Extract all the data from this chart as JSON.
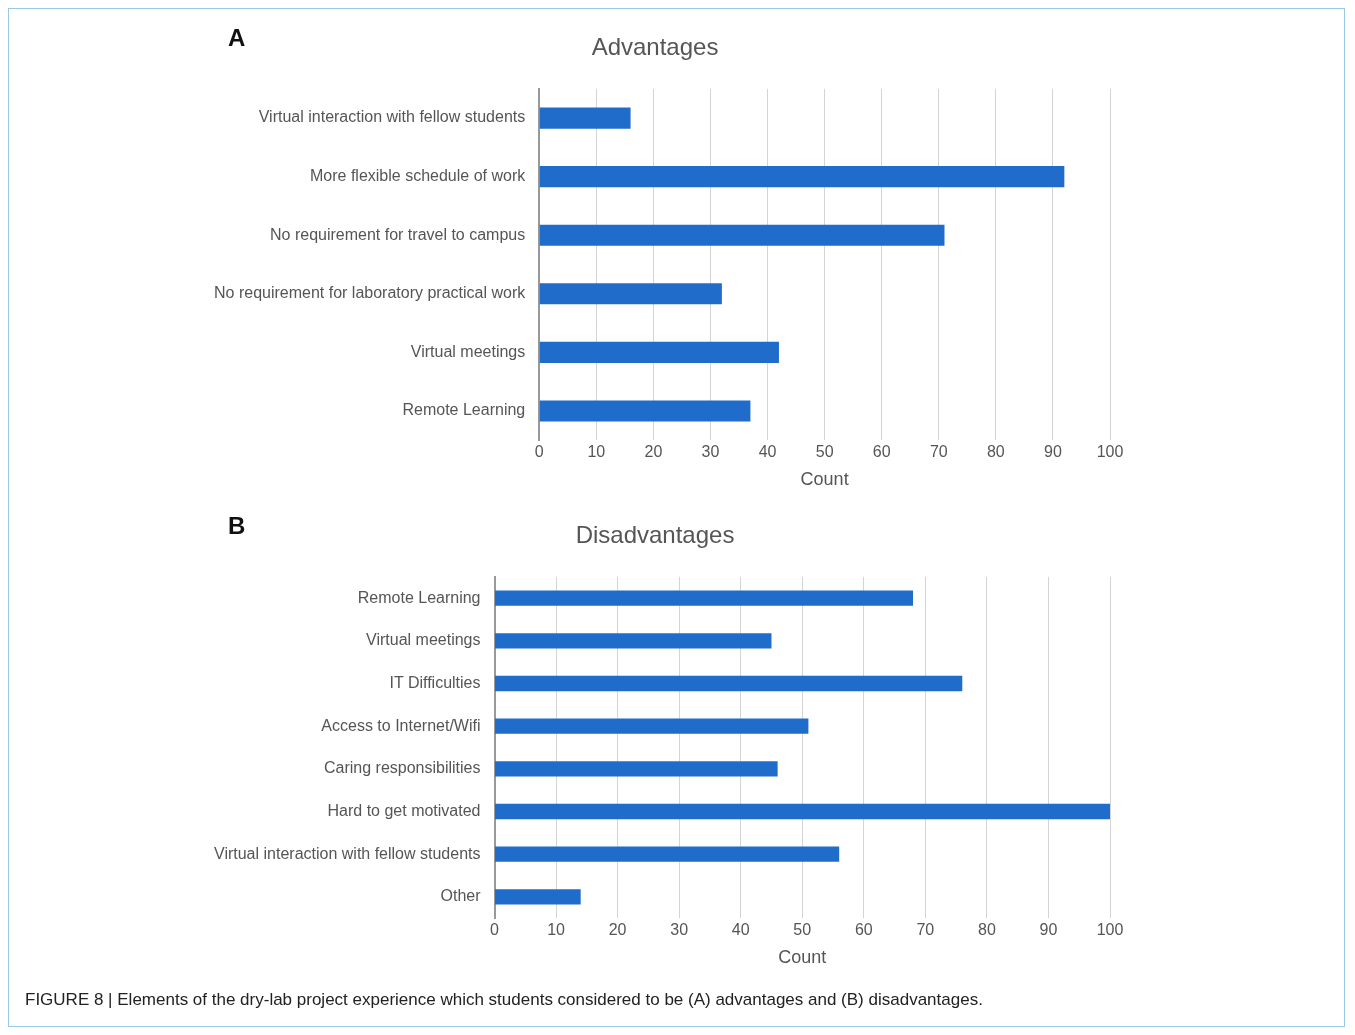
{
  "chart_data": [
    {
      "type": "bar",
      "orientation": "horizontal",
      "title": "Advantages",
      "xlabel": "Count",
      "annotations": [
        "A"
      ],
      "categories": [
        "Virtual interaction with fellow students",
        "More flexible schedule of work",
        "No requirement for travel to campus",
        "No requirement for laboratory practical work",
        "Virtual meetings",
        "Remote Learning"
      ],
      "values": [
        16,
        92,
        71,
        32,
        42,
        37
      ],
      "color": "#1f6ccb",
      "xlim": [
        0,
        100
      ],
      "xticks": [
        0,
        10,
        20,
        30,
        40,
        50,
        60,
        70,
        80,
        90,
        100
      ],
      "grid": "x",
      "legend": false
    },
    {
      "type": "bar",
      "orientation": "horizontal",
      "title": "Disadvantages",
      "xlabel": "Count",
      "annotations": [
        "B",
        "FIGURE 8 | Elements of the dry-lab project experience which students considered to be (A) advantages and (B) disadvantages."
      ],
      "categories": [
        "Remote Learning",
        "Virtual meetings",
        "IT Difficulties",
        "Access to Internet/Wifi",
        "Caring responsibilities",
        "Hard to get motivated",
        "Virtual interaction with fellow students",
        "Other"
      ],
      "values": [
        68,
        45,
        76,
        51,
        46,
        100,
        56,
        14
      ],
      "color": "#1f6ccb",
      "xlim": [
        0,
        100
      ],
      "xticks": [
        0,
        10,
        20,
        30,
        40,
        50,
        60,
        70,
        80,
        90,
        100
      ],
      "grid": "x",
      "legend": false
    }
  ]
}
